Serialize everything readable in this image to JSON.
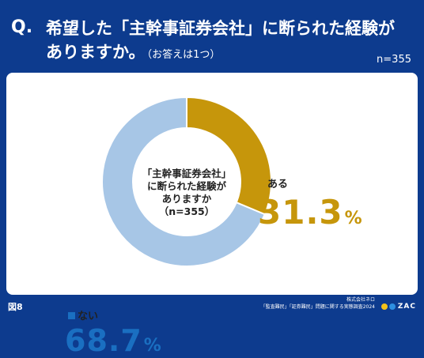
{
  "question": {
    "label": "Q.",
    "line1": "希望した「主幹事証券会社」に断られた経験が",
    "line2": "ありますか。",
    "note": "（お答えは1つ）",
    "n": "n=355"
  },
  "chart_data": {
    "type": "pie",
    "categories": [
      "ある",
      "ない"
    ],
    "values": [
      31.3,
      68.7
    ],
    "colors": [
      "#c6960b",
      "#a7c6e6"
    ],
    "center_label": [
      "「主幹事証券会社」",
      "に断られた経験が",
      "ありますか",
      "（n=355）"
    ],
    "display_values": [
      "31.3",
      "68.7"
    ],
    "unit": "%"
  },
  "footer": {
    "figure": "図8",
    "source_line1": "株式会社ネロ",
    "source_line2": "「監査難民」「証券難民」問題に関する実態調査2024",
    "logo_text": "ZAC"
  }
}
